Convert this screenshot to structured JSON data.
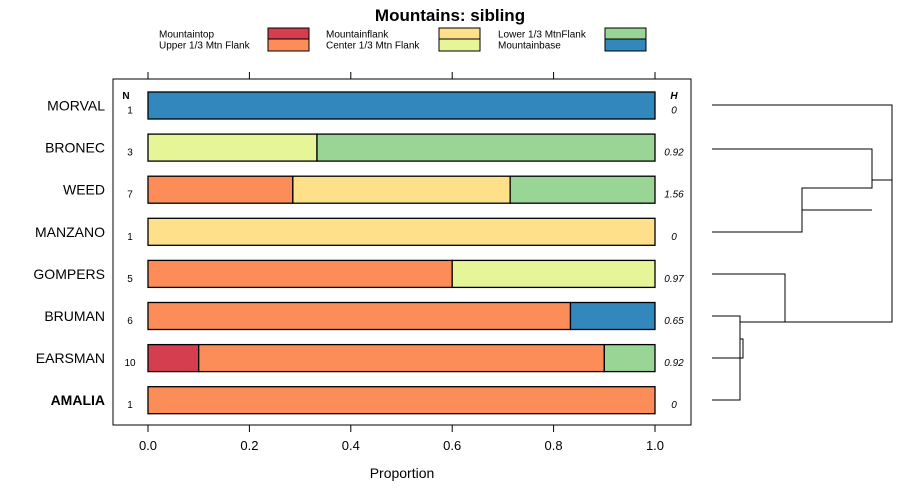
{
  "chart_data": {
    "type": "bar",
    "orientation": "horizontal",
    "stacked": true,
    "title": "Mountains: sibling",
    "xlabel": "Proportion",
    "ylabel": "",
    "xlim": [
      0,
      1
    ],
    "xticks": [
      "0.0",
      "0.2",
      "0.4",
      "0.6",
      "0.8",
      "1.0"
    ],
    "n_header": "N",
    "h_header": "H",
    "legend_position": "top",
    "categories_legend": [
      {
        "name": "Mountaintop",
        "color": "#d53e4f"
      },
      {
        "name": "Upper 1/3 Mtn Flank",
        "color": "#fc8d59"
      },
      {
        "name": "Mountainflank",
        "color": "#fee08b"
      },
      {
        "name": "Center 1/3 Mtn Flank",
        "color": "#e6f598"
      },
      {
        "name": "Lower 1/3 MtnFlank",
        "color": "#99d594"
      },
      {
        "name": "Mountainbase",
        "color": "#3288bd"
      }
    ],
    "rows": [
      {
        "label": "MORVAL",
        "bold": false,
        "n": "1",
        "h": "0",
        "segments": [
          0,
          0,
          0,
          0,
          0,
          1
        ]
      },
      {
        "label": "BRONEC",
        "bold": false,
        "n": "3",
        "h": "0.92",
        "segments": [
          0,
          0,
          0,
          0.3333,
          0.6667,
          0
        ]
      },
      {
        "label": "WEED",
        "bold": false,
        "n": "7",
        "h": "1.56",
        "segments": [
          0,
          0.2857,
          0.4286,
          0,
          0.2857,
          0
        ]
      },
      {
        "label": "MANZANO",
        "bold": false,
        "n": "1",
        "h": "0",
        "segments": [
          0,
          0,
          1,
          0,
          0,
          0
        ]
      },
      {
        "label": "GOMPERS",
        "bold": false,
        "n": "5",
        "h": "0.97",
        "segments": [
          0,
          0.6,
          0,
          0.4,
          0,
          0
        ]
      },
      {
        "label": "BRUMAN",
        "bold": false,
        "n": "6",
        "h": "0.65",
        "segments": [
          0,
          0.8333,
          0,
          0,
          0,
          0.1667
        ]
      },
      {
        "label": "EARSMAN",
        "bold": false,
        "n": "10",
        "h": "0.92",
        "segments": [
          0.1,
          0.8,
          0,
          0,
          0.1,
          0
        ]
      },
      {
        "label": "AMALIA",
        "bold": true,
        "n": "1",
        "h": "0",
        "segments": [
          0,
          1,
          0,
          0,
          0,
          0
        ]
      }
    ]
  }
}
